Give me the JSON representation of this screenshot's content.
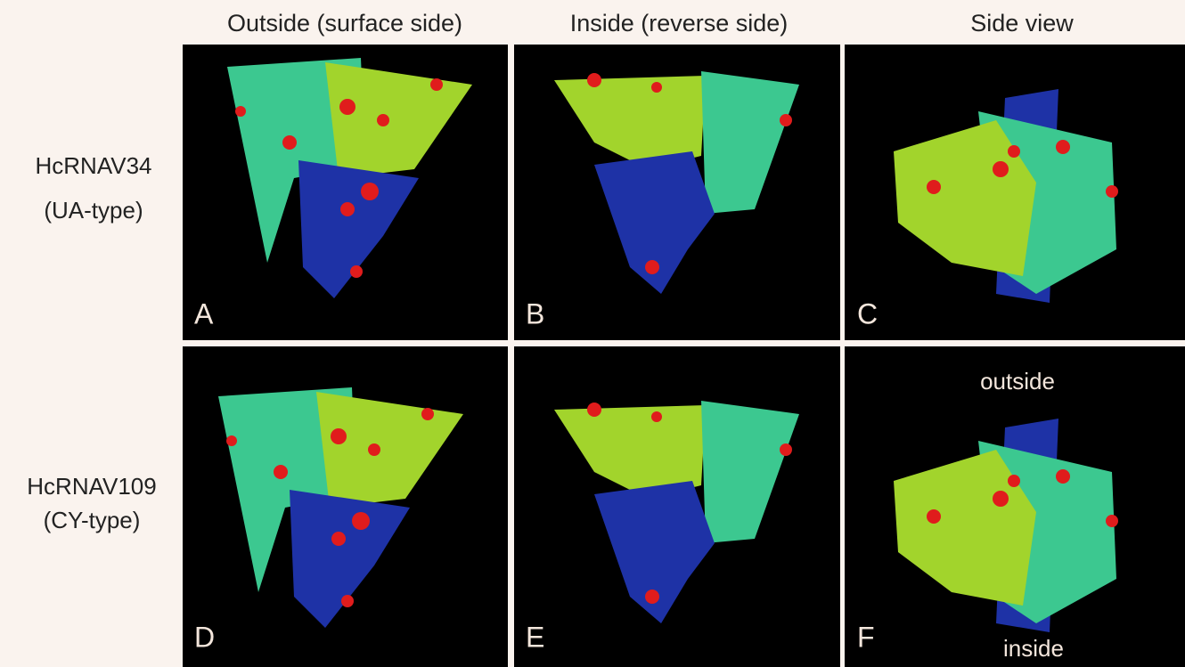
{
  "columns": [
    "Outside (surface side)",
    "Inside (reverse side)",
    "Side view"
  ],
  "rows": [
    {
      "name": "HcRNAV34",
      "type": "(UA-type)"
    },
    {
      "name": "HcRNAV109",
      "type": "(CY-type)"
    }
  ],
  "panels": [
    "A",
    "B",
    "C",
    "D",
    "E",
    "F"
  ],
  "annotations": {
    "top": "outside",
    "bottom": "inside"
  }
}
